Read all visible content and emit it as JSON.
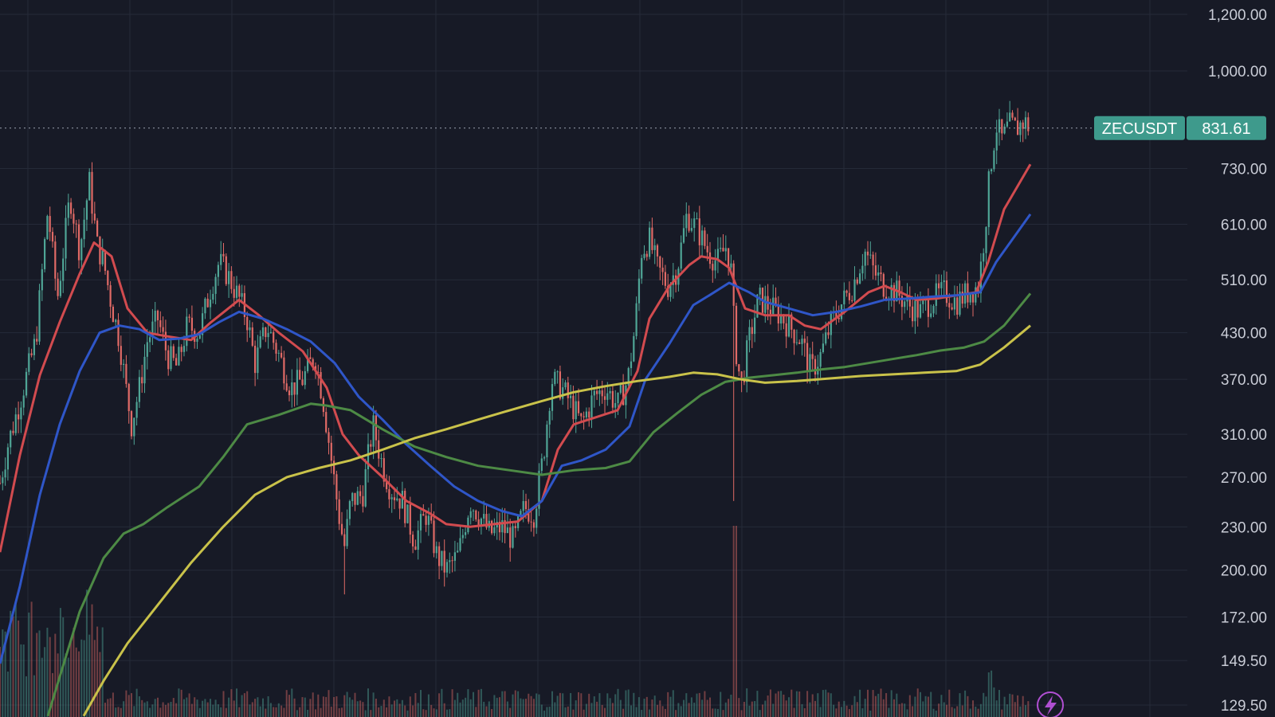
{
  "chart_data": {
    "type": "candlestick",
    "symbol": "ZECUSDT",
    "last_price": "831.61",
    "y_scale": "log",
    "ylim": [
      125,
      1250
    ],
    "y_ticks": [
      "1,200.00",
      "1,000.00",
      "730.00",
      "610.00",
      "510.00",
      "430.00",
      "370.00",
      "310.00",
      "270.00",
      "230.00",
      "200.00",
      "172.00",
      "149.50",
      "129.50"
    ],
    "grid": true,
    "colors": {
      "background": "#171a26",
      "grid": "#252a38",
      "up": "#4fa596",
      "down": "#e06a66",
      "badge": "#3e9a8c",
      "ma_fast": "#d24b4f",
      "ma_mid": "#2f56c8",
      "ma_slow": "#4d8a45",
      "ma_long": "#c9c24a"
    },
    "price_path": [
      [
        0,
        265
      ],
      [
        10,
        300
      ],
      [
        25,
        345
      ],
      [
        45,
        420
      ],
      [
        60,
        640
      ],
      [
        72,
        480
      ],
      [
        88,
        670
      ],
      [
        100,
        560
      ],
      [
        112,
        700
      ],
      [
        122,
        570
      ],
      [
        130,
        540
      ],
      [
        140,
        470
      ],
      [
        150,
        420
      ],
      [
        158,
        360
      ],
      [
        165,
        320
      ],
      [
        175,
        360
      ],
      [
        185,
        420
      ],
      [
        198,
        450
      ],
      [
        210,
        400
      ],
      [
        222,
        385
      ],
      [
        235,
        440
      ],
      [
        250,
        430
      ],
      [
        265,
        500
      ],
      [
        275,
        540
      ],
      [
        285,
        520
      ],
      [
        300,
        480
      ],
      [
        310,
        450
      ],
      [
        320,
        390
      ],
      [
        335,
        440
      ],
      [
        350,
        400
      ],
      [
        365,
        360
      ],
      [
        380,
        370
      ],
      [
        395,
        400
      ],
      [
        405,
        350
      ],
      [
        415,
        290
      ],
      [
        425,
        240
      ],
      [
        432,
        215
      ],
      [
        440,
        250
      ],
      [
        455,
        255
      ],
      [
        468,
        320
      ],
      [
        480,
        280
      ],
      [
        490,
        260
      ],
      [
        505,
        250
      ],
      [
        520,
        220
      ],
      [
        535,
        240
      ],
      [
        548,
        210
      ],
      [
        560,
        200
      ],
      [
        575,
        210
      ],
      [
        590,
        250
      ],
      [
        600,
        240
      ],
      [
        615,
        225
      ],
      [
        630,
        230
      ],
      [
        645,
        220
      ],
      [
        658,
        245
      ],
      [
        670,
        240
      ],
      [
        682,
        290
      ],
      [
        692,
        370
      ],
      [
        705,
        360
      ],
      [
        718,
        340
      ],
      [
        730,
        320
      ],
      [
        745,
        350
      ],
      [
        760,
        360
      ],
      [
        775,
        340
      ],
      [
        788,
        370
      ],
      [
        797,
        440
      ],
      [
        805,
        560
      ],
      [
        815,
        580
      ],
      [
        825,
        530
      ],
      [
        838,
        500
      ],
      [
        850,
        530
      ],
      [
        862,
        630
      ],
      [
        875,
        600
      ],
      [
        888,
        560
      ],
      [
        900,
        540
      ],
      [
        912,
        570
      ],
      [
        918,
        520
      ],
      [
        922,
        420
      ],
      [
        930,
        360
      ],
      [
        940,
        420
      ],
      [
        952,
        480
      ],
      [
        963,
        470
      ],
      [
        975,
        460
      ],
      [
        990,
        440
      ],
      [
        1005,
        420
      ],
      [
        1018,
        380
      ],
      [
        1030,
        400
      ],
      [
        1042,
        440
      ],
      [
        1055,
        470
      ],
      [
        1070,
        500
      ],
      [
        1085,
        560
      ],
      [
        1098,
        520
      ],
      [
        1110,
        500
      ],
      [
        1125,
        490
      ],
      [
        1140,
        470
      ],
      [
        1155,
        460
      ],
      [
        1170,
        480
      ],
      [
        1185,
        490
      ],
      [
        1200,
        475
      ],
      [
        1215,
        490
      ],
      [
        1228,
        500
      ],
      [
        1236,
        600
      ],
      [
        1242,
        720
      ],
      [
        1250,
        840
      ],
      [
        1258,
        800
      ],
      [
        1266,
        840
      ],
      [
        1275,
        830
      ],
      [
        1285,
        850
      ],
      [
        1293,
        831.61
      ]
    ],
    "moving_averages": [
      {
        "key": "ma_fast",
        "values": [
          [
            0,
            212
          ],
          [
            25,
            290
          ],
          [
            50,
            375
          ],
          [
            75,
            445
          ],
          [
            100,
            520
          ],
          [
            118,
            575
          ],
          [
            140,
            550
          ],
          [
            160,
            465
          ],
          [
            185,
            430
          ],
          [
            210,
            425
          ],
          [
            240,
            420
          ],
          [
            265,
            445
          ],
          [
            300,
            478
          ],
          [
            325,
            455
          ],
          [
            350,
            430
          ],
          [
            380,
            405
          ],
          [
            410,
            360
          ],
          [
            430,
            310
          ],
          [
            450,
            290
          ],
          [
            480,
            270
          ],
          [
            510,
            250
          ],
          [
            540,
            240
          ],
          [
            560,
            232
          ],
          [
            590,
            230
          ],
          [
            620,
            232
          ],
          [
            650,
            234
          ],
          [
            680,
            250
          ],
          [
            700,
            295
          ],
          [
            720,
            320
          ],
          [
            750,
            328
          ],
          [
            775,
            335
          ],
          [
            800,
            380
          ],
          [
            815,
            450
          ],
          [
            840,
            500
          ],
          [
            865,
            535
          ],
          [
            880,
            550
          ],
          [
            900,
            545
          ],
          [
            915,
            530
          ],
          [
            935,
            465
          ],
          [
            960,
            455
          ],
          [
            990,
            455
          ],
          [
            1010,
            440
          ],
          [
            1030,
            435
          ],
          [
            1060,
            460
          ],
          [
            1090,
            490
          ],
          [
            1110,
            500
          ],
          [
            1130,
            490
          ],
          [
            1150,
            478
          ],
          [
            1175,
            480
          ],
          [
            1200,
            485
          ],
          [
            1225,
            490
          ],
          [
            1240,
            540
          ],
          [
            1260,
            640
          ],
          [
            1293,
            740
          ]
        ]
      },
      {
        "key": "ma_mid",
        "values": [
          [
            0,
            148
          ],
          [
            25,
            190
          ],
          [
            50,
            255
          ],
          [
            75,
            320
          ],
          [
            100,
            380
          ],
          [
            125,
            430
          ],
          [
            150,
            440
          ],
          [
            175,
            435
          ],
          [
            200,
            420
          ],
          [
            225,
            422
          ],
          [
            250,
            428
          ],
          [
            275,
            445
          ],
          [
            300,
            460
          ],
          [
            330,
            450
          ],
          [
            360,
            435
          ],
          [
            390,
            418
          ],
          [
            420,
            390
          ],
          [
            450,
            350
          ],
          [
            480,
            325
          ],
          [
            510,
            300
          ],
          [
            540,
            280
          ],
          [
            570,
            262
          ],
          [
            600,
            250
          ],
          [
            630,
            242
          ],
          [
            655,
            238
          ],
          [
            680,
            250
          ],
          [
            705,
            280
          ],
          [
            730,
            285
          ],
          [
            760,
            295
          ],
          [
            790,
            318
          ],
          [
            810,
            370
          ],
          [
            840,
            415
          ],
          [
            870,
            470
          ],
          [
            890,
            485
          ],
          [
            915,
            505
          ],
          [
            940,
            490
          ],
          [
            960,
            475
          ],
          [
            990,
            465
          ],
          [
            1020,
            455
          ],
          [
            1050,
            460
          ],
          [
            1080,
            468
          ],
          [
            1110,
            478
          ],
          [
            1140,
            480
          ],
          [
            1170,
            483
          ],
          [
            1200,
            485
          ],
          [
            1230,
            490
          ],
          [
            1250,
            540
          ],
          [
            1293,
            630
          ]
        ]
      },
      {
        "key": "ma_slow",
        "values": [
          [
            60,
            125
          ],
          [
            80,
            148
          ],
          [
            100,
            175
          ],
          [
            130,
            208
          ],
          [
            155,
            225
          ],
          [
            180,
            232
          ],
          [
            210,
            245
          ],
          [
            250,
            262
          ],
          [
            280,
            288
          ],
          [
            310,
            320
          ],
          [
            350,
            330
          ],
          [
            390,
            342
          ],
          [
            410,
            340
          ],
          [
            440,
            335
          ],
          [
            480,
            315
          ],
          [
            520,
            298
          ],
          [
            560,
            288
          ],
          [
            600,
            280
          ],
          [
            640,
            276
          ],
          [
            680,
            272
          ],
          [
            720,
            276
          ],
          [
            760,
            278
          ],
          [
            790,
            284
          ],
          [
            820,
            312
          ],
          [
            850,
            332
          ],
          [
            880,
            352
          ],
          [
            910,
            367
          ],
          [
            940,
            372
          ],
          [
            970,
            375
          ],
          [
            1000,
            378
          ],
          [
            1030,
            382
          ],
          [
            1060,
            385
          ],
          [
            1090,
            390
          ],
          [
            1120,
            395
          ],
          [
            1150,
            400
          ],
          [
            1180,
            406
          ],
          [
            1210,
            410
          ],
          [
            1235,
            418
          ],
          [
            1260,
            440
          ],
          [
            1293,
            488
          ]
        ]
      },
      {
        "key": "ma_long",
        "values": [
          [
            105,
            125
          ],
          [
            130,
            140
          ],
          [
            160,
            158
          ],
          [
            200,
            180
          ],
          [
            240,
            205
          ],
          [
            280,
            230
          ],
          [
            320,
            255
          ],
          [
            360,
            270
          ],
          [
            400,
            278
          ],
          [
            440,
            285
          ],
          [
            480,
            295
          ],
          [
            520,
            306
          ],
          [
            560,
            315
          ],
          [
            600,
            325
          ],
          [
            640,
            335
          ],
          [
            680,
            345
          ],
          [
            720,
            355
          ],
          [
            760,
            362
          ],
          [
            800,
            368
          ],
          [
            840,
            373
          ],
          [
            870,
            378
          ],
          [
            900,
            376
          ],
          [
            930,
            370
          ],
          [
            960,
            366
          ],
          [
            1000,
            368
          ],
          [
            1040,
            371
          ],
          [
            1080,
            374
          ],
          [
            1120,
            376
          ],
          [
            1160,
            378
          ],
          [
            1200,
            380
          ],
          [
            1230,
            388
          ],
          [
            1260,
            410
          ],
          [
            1293,
            440
          ]
        ]
      }
    ],
    "volume_note": "volume histogram bars along the bottom edge, green/red with price direction"
  },
  "controls": {
    "lightning_icon": "lightning-icon"
  }
}
